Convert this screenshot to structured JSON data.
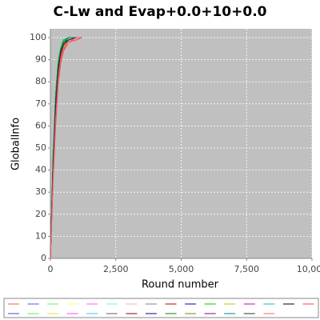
{
  "chart_data": {
    "type": "line",
    "title": "C-Lw and Evap+0.0+10+0.0",
    "xlabel": "Round number",
    "ylabel": "GlobalInfo",
    "x": [
      0,
      100,
      200,
      300,
      400,
      500,
      700,
      1000,
      1200
    ],
    "series": [
      {
        "color": "#ff5555",
        "values": [
          0,
          35,
          62,
          80,
          90,
          95,
          98,
          99,
          100
        ]
      },
      {
        "color": "#5555ff",
        "values": [
          0,
          42,
          70,
          86,
          94,
          97,
          99,
          100,
          100
        ]
      },
      {
        "color": "#55ff55",
        "values": [
          0,
          45,
          74,
          89,
          96,
          99,
          100,
          100,
          100
        ]
      },
      {
        "color": "#ffff55",
        "values": [
          0,
          38,
          66,
          83,
          92,
          96,
          99,
          100,
          100
        ]
      },
      {
        "color": "#ff55ff",
        "values": [
          0,
          40,
          69,
          85,
          93,
          97,
          99,
          100,
          100
        ]
      },
      {
        "color": "#55ffff",
        "values": [
          0,
          44,
          72,
          88,
          95,
          98,
          100,
          100,
          100
        ]
      },
      {
        "color": "#ffafaf",
        "values": [
          0,
          36,
          64,
          82,
          91,
          96,
          98,
          100,
          100
        ]
      },
      {
        "color": "#808080",
        "values": [
          0,
          41,
          70,
          87,
          94,
          98,
          99,
          100,
          100
        ]
      },
      {
        "color": "#c00000",
        "values": [
          0,
          37,
          65,
          83,
          92,
          96,
          99,
          100,
          100
        ]
      },
      {
        "color": "#0000c0",
        "values": [
          0,
          43,
          71,
          87,
          95,
          98,
          100,
          100,
          100
        ]
      },
      {
        "color": "#00c000",
        "values": [
          0,
          46,
          75,
          90,
          96,
          99,
          100,
          100,
          100
        ]
      },
      {
        "color": "#c0c000",
        "values": [
          0,
          39,
          67,
          84,
          93,
          97,
          99,
          100,
          100
        ]
      },
      {
        "color": "#c000c0",
        "values": [
          0,
          40,
          68,
          85,
          93,
          97,
          99,
          100,
          100
        ]
      },
      {
        "color": "#00c0c0",
        "values": [
          0,
          44,
          73,
          88,
          95,
          98,
          100,
          100,
          100
        ]
      },
      {
        "color": "#000000",
        "values": [
          0,
          42,
          71,
          86,
          94,
          98,
          99,
          100,
          100
        ]
      },
      {
        "color": "#ff4040",
        "values": [
          0,
          34,
          60,
          79,
          89,
          94,
          98,
          99,
          100
        ]
      },
      {
        "color": "#4040ff",
        "values": [
          0,
          41,
          69,
          86,
          94,
          97,
          99,
          100,
          100
        ]
      },
      {
        "color": "#40ff40",
        "values": [
          0,
          45,
          73,
          89,
          96,
          98,
          100,
          100,
          100
        ]
      },
      {
        "color": "#e0e040",
        "values": [
          0,
          39,
          66,
          84,
          92,
          96,
          99,
          100,
          100
        ]
      },
      {
        "color": "#ff40ff",
        "values": [
          0,
          40,
          70,
          86,
          94,
          97,
          99,
          100,
          100
        ]
      },
      {
        "color": "#40c0ff",
        "values": [
          0,
          43,
          72,
          88,
          95,
          98,
          100,
          100,
          100
        ]
      },
      {
        "color": "#606060",
        "values": [
          0,
          38,
          67,
          84,
          93,
          97,
          99,
          100,
          100
        ]
      },
      {
        "color": "#800000",
        "values": [
          0,
          41,
          69,
          86,
          94,
          97,
          99,
          100,
          100
        ]
      },
      {
        "color": "#000080",
        "values": [
          0,
          44,
          72,
          88,
          95,
          98,
          100,
          100,
          100
        ]
      },
      {
        "color": "#008000",
        "values": [
          0,
          42,
          71,
          87,
          94,
          98,
          99,
          100,
          100
        ]
      },
      {
        "color": "#808000",
        "values": [
          0,
          37,
          65,
          83,
          92,
          96,
          99,
          100,
          100
        ]
      },
      {
        "color": "#800080",
        "values": [
          0,
          40,
          68,
          85,
          93,
          97,
          99,
          100,
          100
        ]
      },
      {
        "color": "#008080",
        "values": [
          0,
          43,
          72,
          88,
          95,
          98,
          100,
          100,
          100
        ]
      },
      {
        "color": "#303030",
        "values": [
          0,
          41,
          70,
          86,
          94,
          97,
          99,
          100,
          100
        ]
      },
      {
        "color": "#ff6060",
        "values": [
          0,
          36,
          63,
          81,
          91,
          95,
          98,
          100,
          100
        ]
      }
    ],
    "xlim": [
      0,
      10000
    ],
    "xticks": [
      0,
      {
        "value": 2500,
        "label": "2,500"
      },
      {
        "value": 5000,
        "label": "5,000"
      },
      {
        "value": 7500,
        "label": "7,500"
      },
      {
        "value": 10000,
        "label": "10,000"
      }
    ],
    "ylim": [
      0,
      104
    ],
    "yticks": [
      0,
      10,
      20,
      30,
      40,
      50,
      60,
      70,
      80,
      90,
      100
    ],
    "grid": true,
    "legend": "bottom"
  }
}
